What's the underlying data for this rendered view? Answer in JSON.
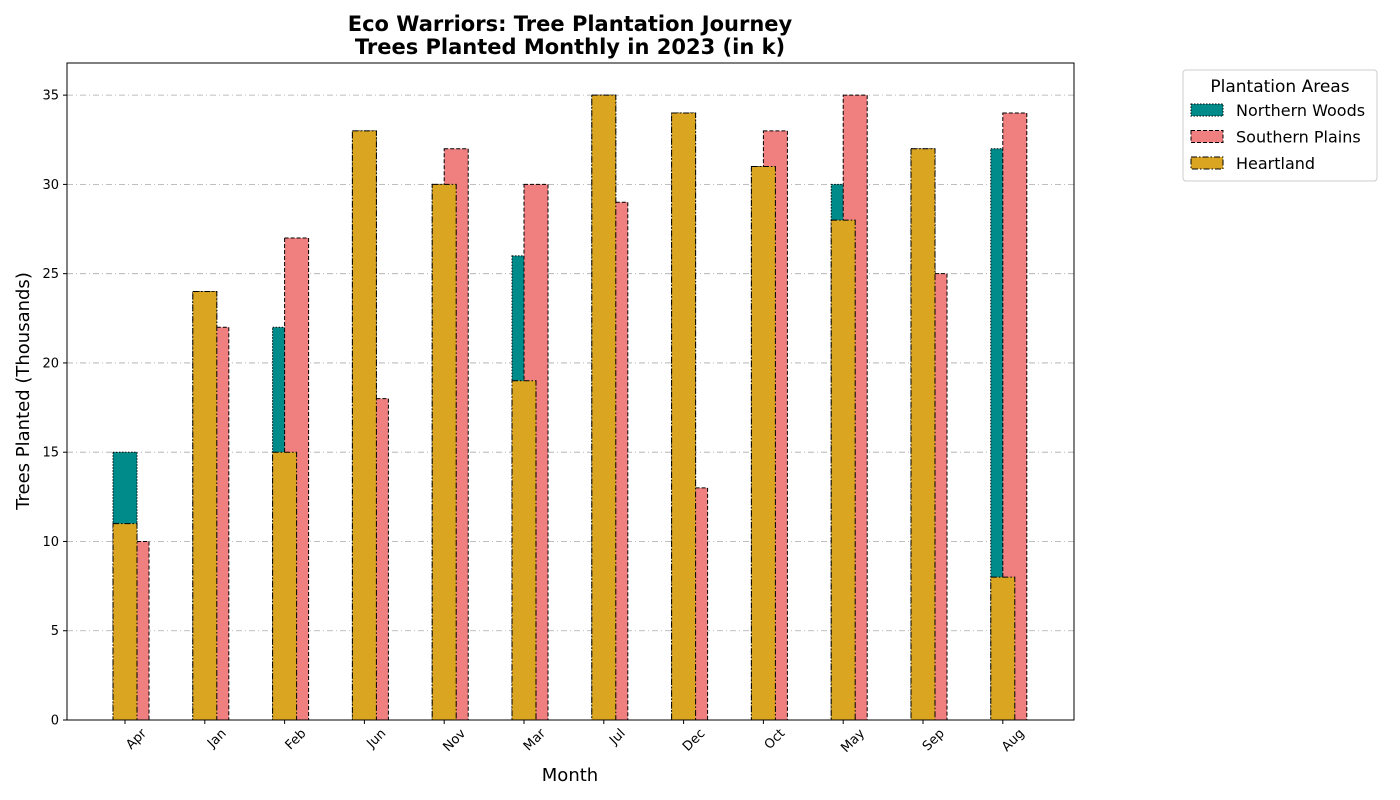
{
  "chart_data": {
    "type": "bar",
    "title_line1": "Eco Warriors: Tree Plantation Journey",
    "title_line2": "Trees Planted Monthly in 2023 (in k)",
    "xlabel": "Month",
    "ylabel": "Trees Planted (Thousands)",
    "categories": [
      "Apr",
      "Jan",
      "Feb",
      "Jun",
      "Nov",
      "Mar",
      "Jul",
      "Dec",
      "Oct",
      "May",
      "Sep",
      "Aug"
    ],
    "ylim": [
      0,
      36.8
    ],
    "yticks": [
      "0",
      "5",
      "10",
      "15",
      "20",
      "25",
      "30",
      "35"
    ],
    "grid": "horizontal dash-dot",
    "legend": {
      "title": "Plantation Areas",
      "placement": "outside-top-right"
    },
    "series": [
      {
        "name": "Northern Woods",
        "color": "#008b8b",
        "values": [
          15,
          24,
          22,
          33,
          30,
          26,
          35,
          34,
          31,
          30,
          32,
          32
        ]
      },
      {
        "name": "Southern Plains",
        "color": "#f08080",
        "values": [
          10,
          22,
          27,
          18,
          32,
          30,
          29,
          13,
          33,
          35,
          25,
          34
        ]
      },
      {
        "name": "Heartland",
        "color": "#daa520",
        "values": [
          11,
          24,
          15,
          33,
          30,
          19,
          35,
          34,
          31,
          28,
          32,
          8
        ]
      }
    ]
  }
}
